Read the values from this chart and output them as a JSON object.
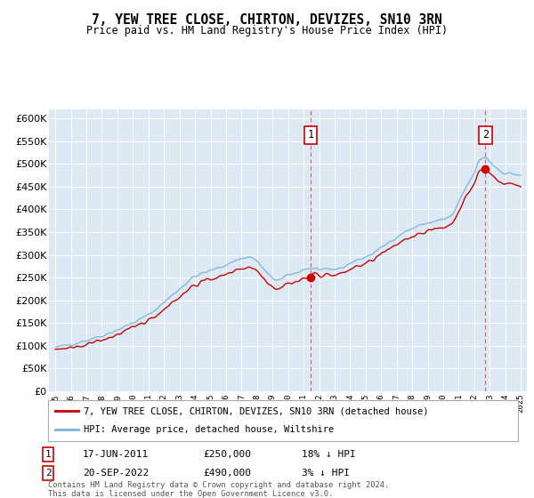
{
  "title": "7, YEW TREE CLOSE, CHIRTON, DEVIZES, SN10 3RN",
  "subtitle": "Price paid vs. HM Land Registry's House Price Index (HPI)",
  "hpi_label": "HPI: Average price, detached house, Wiltshire",
  "property_label": "7, YEW TREE CLOSE, CHIRTON, DEVIZES, SN10 3RN (detached house)",
  "footnote": "Contains HM Land Registry data © Crown copyright and database right 2024.\nThis data is licensed under the Open Government Licence v3.0.",
  "sale1_date": "17-JUN-2011",
  "sale1_price": "£250,000",
  "sale1_hpi": "18% ↓ HPI",
  "sale2_date": "20-SEP-2022",
  "sale2_price": "£490,000",
  "sale2_hpi": "3% ↓ HPI",
  "hpi_color": "#7ab4d8",
  "property_color": "#cc0000",
  "plot_bg": "#dce9f5",
  "ylim": [
    0,
    620000
  ],
  "yticks": [
    0,
    50000,
    100000,
    150000,
    200000,
    250000,
    300000,
    350000,
    400000,
    450000,
    500000,
    550000,
    600000
  ],
  "sale1_x": 2011.46,
  "sale2_x": 2022.72,
  "xlim_left": 1994.6,
  "xlim_right": 2025.4
}
